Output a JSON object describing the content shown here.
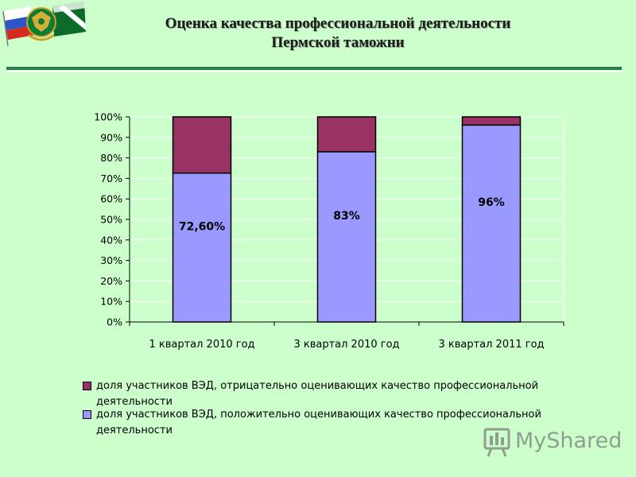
{
  "header": {
    "title_line1": "Оценка качества профессиональной деятельности",
    "title_line2": "Пермской таможни"
  },
  "colors": {
    "background": "#ccffcc",
    "positive": "#9999ff",
    "negative": "#993366",
    "header_rule": "#2e7d4f"
  },
  "chart_data": {
    "type": "bar",
    "stacked": true,
    "categories": [
      "1 квартал 2010 год",
      "3 квартал 2010 год",
      "3 квартал 2011 год"
    ],
    "series": [
      {
        "name": "доля участников ВЭД, положительно оценивающих качество профессиональной деятельности",
        "values": [
          72.6,
          83,
          96
        ],
        "labels": [
          "72,60%",
          "83%",
          "96%"
        ],
        "color": "#9999ff"
      },
      {
        "name": "доля участников ВЭД, отрицательно оценивающих качество профессиональной деятельности",
        "values": [
          27.4,
          17,
          4
        ],
        "color": "#993366"
      }
    ],
    "ylim": [
      0,
      100
    ],
    "yticks": [
      "0%",
      "10%",
      "20%",
      "30%",
      "40%",
      "50%",
      "60%",
      "70%",
      "80%",
      "90%",
      "100%"
    ],
    "grid": true,
    "legend_position": "bottom"
  },
  "legend": {
    "negative_text": "доля участников ВЭД, отрицательно оценивающих качество профессиональной деятельности",
    "positive_text": "доля участников ВЭД, положительно оценивающих качество профессиональной деятельности"
  },
  "watermark": {
    "text": "MyShared"
  }
}
